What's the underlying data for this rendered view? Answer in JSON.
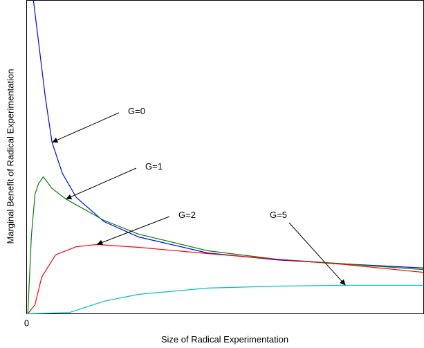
{
  "chart_data": {
    "type": "line",
    "xlabel": "Size of Radical Experimentation",
    "ylabel": "Marginal Benefit of Radical Experimentation",
    "xlim": [
      0,
      100
    ],
    "ylim": [
      0,
      100
    ],
    "xticks": [
      0
    ],
    "yticks": [],
    "series": [
      {
        "name": "G=0",
        "color": "#0000ff",
        "x": [
          1.7,
          3.0,
          4.7,
          6.4,
          9.0,
          12.5,
          19.5,
          28.2,
          45.6,
          63.0,
          80.3,
          100
        ],
        "values": [
          100,
          86.8,
          69.1,
          54.7,
          44.8,
          37.1,
          29.4,
          24.5,
          19.4,
          17.2,
          15.9,
          14.6
        ]
      },
      {
        "name": "G=1",
        "color": "#008000",
        "x": [
          0.3,
          1.2,
          2.1,
          3.0,
          4.2,
          6.4,
          9.9,
          19.5,
          28.2,
          45.6,
          63.0,
          80.3,
          100
        ],
        "values": [
          0,
          24.9,
          38.2,
          41.5,
          43.7,
          40.0,
          36.6,
          29.8,
          25.4,
          20.1,
          17.4,
          15.9,
          14.1
        ]
      },
      {
        "name": "G=2",
        "color": "#ff0000",
        "x": [
          0.3,
          2.1,
          3.8,
          7.3,
          12.5,
          17.7,
          28.2,
          45.6,
          63.0,
          80.3,
          100
        ],
        "values": [
          0,
          2.9,
          11.7,
          18.8,
          21.4,
          22.1,
          21.2,
          19.2,
          17.4,
          15.7,
          13.2
        ]
      },
      {
        "name": "G=5",
        "color": "#00c0c0",
        "x": [
          0,
          10.8,
          19.5,
          28.2,
          45.6,
          63.0,
          80.3,
          100
        ],
        "values": [
          0,
          0.4,
          4.0,
          6.2,
          8.2,
          8.8,
          9.1,
          9.1
        ]
      }
    ]
  }
}
